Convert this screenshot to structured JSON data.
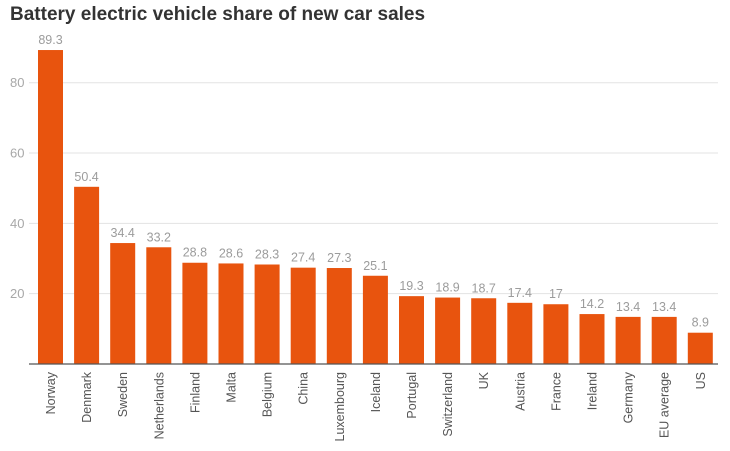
{
  "chart_data": {
    "type": "bar",
    "title": "Battery electric vehicle share of new car sales",
    "xlabel": "",
    "ylabel": "",
    "ylim": [
      0,
      95
    ],
    "yticks": [
      20,
      40,
      60,
      80
    ],
    "grid": true,
    "bar_color": "#E8540E",
    "categories": [
      "Norway",
      "Denmark",
      "Sweden",
      "Netherlands",
      "Finland",
      "Malta",
      "Belgium",
      "China",
      "Luxembourg",
      "Iceland",
      "Portugal",
      "Switzerland",
      "UK",
      "Austria",
      "France",
      "Ireland",
      "Germany",
      "EU average",
      "US"
    ],
    "values": [
      89.3,
      50.4,
      34.4,
      33.2,
      28.8,
      28.6,
      28.3,
      27.4,
      27.3,
      25.1,
      19.3,
      18.9,
      18.7,
      17.4,
      17,
      14.2,
      13.4,
      13.4,
      8.9
    ],
    "value_labels": [
      "89.3",
      "50.4",
      "34.4",
      "33.2",
      "28.8",
      "28.6",
      "28.3",
      "27.4",
      "27.3",
      "25.1",
      "19.3",
      "18.9",
      "18.7",
      "17.4",
      "17",
      "14.2",
      "13.4",
      "13.4",
      "8.9"
    ]
  }
}
